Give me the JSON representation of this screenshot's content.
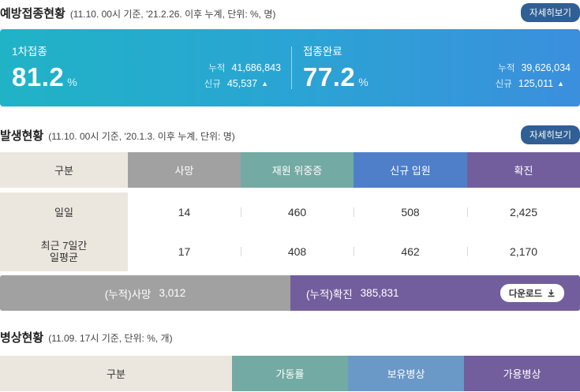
{
  "vaccination": {
    "title": "예방접종현황",
    "subtitle": "(11.10. 00시 기준, '21.2.26. 이후 누계, 단위: %, 명)",
    "detail_label": "자세히보기",
    "first_dose": {
      "label": "1차접종",
      "rate": "81.2",
      "unit": "%",
      "cumulative_label": "누적",
      "cumulative": "41,686,843",
      "new_label": "신규",
      "new": "45,537"
    },
    "completed": {
      "label": "접종완료",
      "rate": "77.2",
      "unit": "%",
      "cumulative_label": "누적",
      "cumulative": "39,626,034",
      "new_label": "신규",
      "new": "125,011"
    },
    "accent": "#2aa4d4"
  },
  "outbreak": {
    "title": "발생현황",
    "subtitle": "(11.10. 00시 기준, '20.1.3. 이후 누계, 단위: 명)",
    "detail_label": "자세히보기",
    "headers": [
      "구분",
      "사망",
      "재원 위중증",
      "신규 입원",
      "확진"
    ],
    "header_colors": [
      "#ece7de",
      "#a1a1a1",
      "#73aaa3",
      "#4e7fc8",
      "#725e9c"
    ],
    "rows": [
      {
        "label": "일일",
        "values": [
          "14",
          "460",
          "508",
          "2,425"
        ]
      },
      {
        "label": "최근 7일간\n일평균",
        "values": [
          "17",
          "408",
          "462",
          "2,170"
        ]
      }
    ],
    "cumulative_death_label": "(누적)사망",
    "cumulative_death": "3,012",
    "cumulative_confirmed_label": "(누적)확진",
    "cumulative_confirmed": "385,831",
    "download_label": "다운로드"
  },
  "beds": {
    "title": "병상현황",
    "subtitle": "(11.09. 17시 기준, 단위: %, 개)",
    "headers": [
      "구분",
      "가동률",
      "보유병상",
      "가용병상"
    ],
    "header_colors": [
      "#ece7de",
      "#73aaa3",
      "#6a98c7",
      "#725e9c"
    ]
  }
}
